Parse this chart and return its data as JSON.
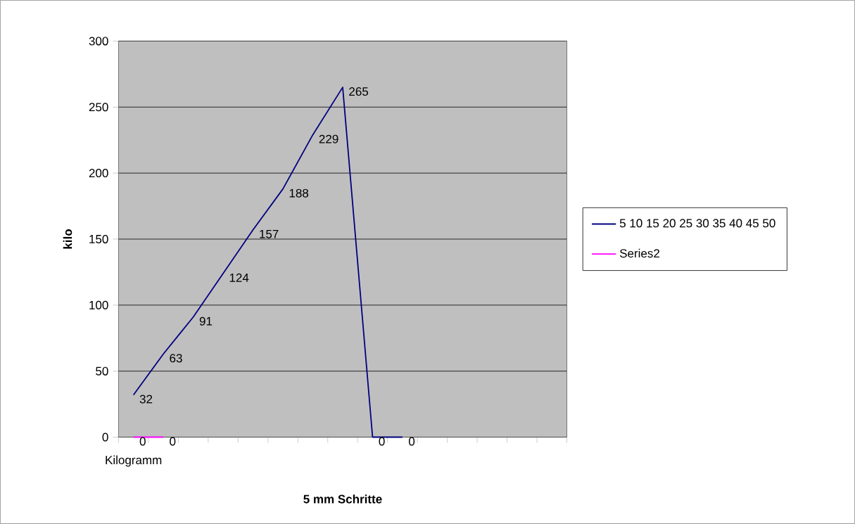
{
  "chart_data": {
    "type": "line",
    "xlabel": "5 mm Schritte",
    "ylabel": "kilo",
    "categories": [
      "Kilogramm",
      null,
      null,
      null,
      null,
      null,
      null,
      null,
      null,
      null,
      null,
      null,
      null,
      null,
      null
    ],
    "series": [
      {
        "name": "5 10 15 20 25 30 35 40 45 50",
        "color": "#000080",
        "values": [
          32,
          63,
          91,
          124,
          157,
          188,
          229,
          265,
          0,
          0,
          null,
          null,
          null,
          null,
          null
        ]
      },
      {
        "name": "Series2",
        "color": "#ff00ff",
        "values": [
          0,
          0,
          null,
          null,
          null,
          null,
          null,
          null,
          null,
          null,
          null,
          null,
          null,
          null,
          null
        ]
      }
    ],
    "ylim": [
      0,
      300
    ],
    "yticks": [
      0,
      50,
      100,
      150,
      200,
      250,
      300
    ],
    "grid": "y",
    "legend": "right",
    "data_labels": true,
    "marker": "none",
    "line_style": "solid"
  }
}
